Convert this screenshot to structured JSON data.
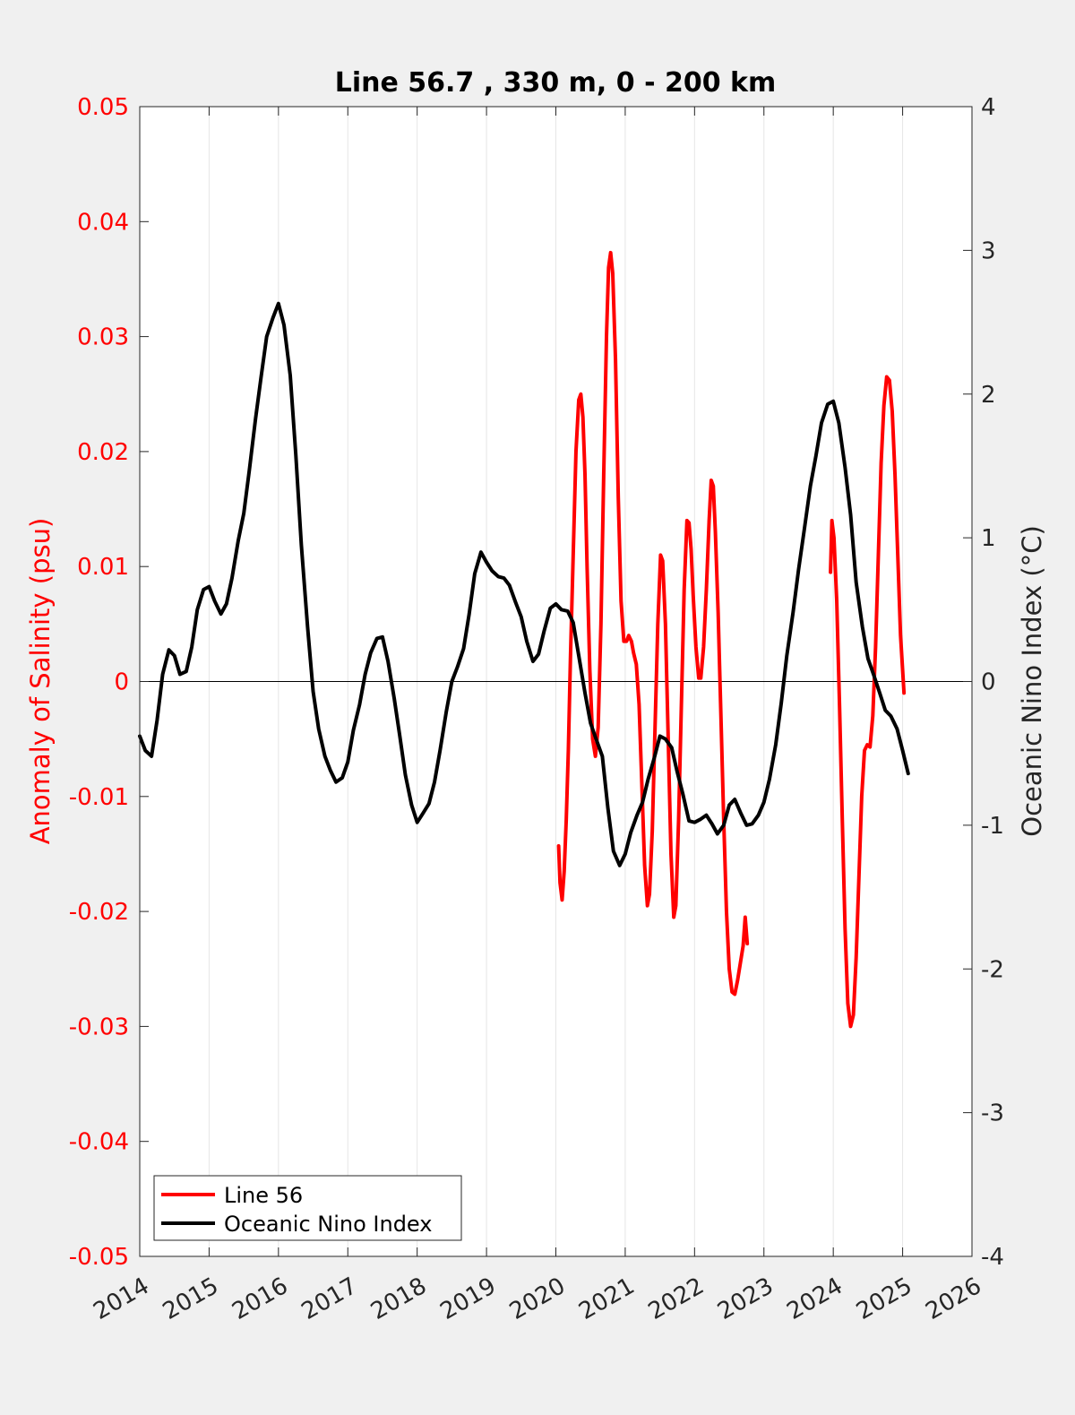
{
  "chart_data": {
    "type": "line",
    "title": "Line 56.7 , 330 m, 0 - 200 km",
    "xlabel": "",
    "ylabel_left": "Anomaly of Salinity (psu)",
    "ylabel_right": "Oceanic Nino Index (°C)",
    "xlim": [
      2014,
      2026
    ],
    "ylim_left": [
      -0.05,
      0.05
    ],
    "ylim_right": [
      -4,
      4
    ],
    "x_ticks": [
      "2014",
      "2015",
      "2016",
      "2017",
      "2018",
      "2019",
      "2020",
      "2021",
      "2022",
      "2023",
      "2024",
      "2025",
      "2026"
    ],
    "y_left_ticks": [
      "-0.05",
      "-0.04",
      "-0.03",
      "-0.02",
      "-0.01",
      "0",
      "0.01",
      "0.02",
      "0.03",
      "0.04",
      "0.05"
    ],
    "y_right_ticks": [
      "-4",
      "-3",
      "-2",
      "-1",
      "0",
      "1",
      "2",
      "3",
      "4"
    ],
    "grid": "vertical",
    "legend_position": "bottom-left",
    "colors": {
      "left_axis": "#ff0000",
      "line56": "#ff0000",
      "oni": "#000000",
      "grid": "#e6e6e6",
      "plot_bg": "#ffffff",
      "figure_bg": "#f0f0f0"
    },
    "legend": [
      {
        "label": "Line 56",
        "color": "#ff0000"
      },
      {
        "label": "Oceanic Nino Index",
        "color": "#000000"
      }
    ],
    "series": [
      {
        "name": "Line 56",
        "axis": "left",
        "color": "#ff0000",
        "segments": [
          [
            [
              2020.04,
              -0.0143
            ],
            [
              2020.06,
              -0.0175
            ],
            [
              2020.09,
              -0.019
            ],
            [
              2020.12,
              -0.0165
            ],
            [
              2020.15,
              -0.012
            ],
            [
              2020.18,
              -0.006
            ],
            [
              2020.21,
              0.002
            ],
            [
              2020.25,
              0.011
            ],
            [
              2020.29,
              0.02
            ],
            [
              2020.33,
              0.0245
            ],
            [
              2020.36,
              0.025
            ],
            [
              2020.39,
              0.023
            ],
            [
              2020.42,
              0.018
            ],
            [
              2020.45,
              0.01
            ],
            [
              2020.49,
              0.001
            ],
            [
              2020.53,
              -0.005
            ],
            [
              2020.57,
              -0.0065
            ],
            [
              2020.61,
              -0.004
            ],
            [
              2020.65,
              0.005
            ],
            [
              2020.69,
              0.018
            ],
            [
              2020.73,
              0.03
            ],
            [
              2020.76,
              0.036
            ],
            [
              2020.79,
              0.0373
            ],
            [
              2020.82,
              0.0355
            ],
            [
              2020.86,
              0.028
            ],
            [
              2020.9,
              0.016
            ],
            [
              2020.94,
              0.007
            ],
            [
              2020.98,
              0.0035
            ],
            [
              2021.02,
              0.0035
            ],
            [
              2021.05,
              0.004
            ],
            [
              2021.09,
              0.0035
            ],
            [
              2021.12,
              0.0025
            ],
            [
              2021.16,
              0.0015
            ],
            [
              2021.2,
              -0.002
            ],
            [
              2021.24,
              -0.009
            ],
            [
              2021.28,
              -0.016
            ],
            [
              2021.32,
              -0.0195
            ],
            [
              2021.35,
              -0.0185
            ],
            [
              2021.39,
              -0.013
            ],
            [
              2021.43,
              -0.004
            ],
            [
              2021.47,
              0.005
            ],
            [
              2021.51,
              0.011
            ],
            [
              2021.54,
              0.0105
            ],
            [
              2021.58,
              0.005
            ],
            [
              2021.62,
              -0.005
            ],
            [
              2021.66,
              -0.015
            ],
            [
              2021.7,
              -0.0205
            ],
            [
              2021.73,
              -0.0195
            ],
            [
              2021.77,
              -0.012
            ],
            [
              2021.81,
              -0.002
            ],
            [
              2021.85,
              0.008
            ],
            [
              2021.89,
              0.014
            ],
            [
              2021.92,
              0.0138
            ],
            [
              2021.95,
              0.0115
            ],
            [
              2021.98,
              0.0075
            ],
            [
              2022.02,
              0.003
            ],
            [
              2022.06,
              0.0003
            ],
            [
              2022.09,
              0.0003
            ],
            [
              2022.13,
              0.003
            ],
            [
              2022.17,
              0.008
            ],
            [
              2022.21,
              0.014
            ],
            [
              2022.24,
              0.0175
            ],
            [
              2022.27,
              0.017
            ],
            [
              2022.3,
              0.013
            ],
            [
              2022.34,
              0.006
            ],
            [
              2022.38,
              -0.003
            ],
            [
              2022.42,
              -0.012
            ],
            [
              2022.46,
              -0.02
            ],
            [
              2022.5,
              -0.025
            ],
            [
              2022.54,
              -0.027
            ],
            [
              2022.58,
              -0.0272
            ],
            [
              2022.62,
              -0.026
            ],
            [
              2022.66,
              -0.0245
            ],
            [
              2022.7,
              -0.023
            ],
            [
              2022.73,
              -0.0205
            ],
            [
              2022.76,
              -0.0228
            ]
          ],
          [
            [
              2023.96,
              0.0095
            ],
            [
              2023.98,
              0.014
            ],
            [
              2024.01,
              0.0125
            ],
            [
              2024.05,
              0.007
            ],
            [
              2024.09,
              -0.002
            ],
            [
              2024.13,
              -0.012
            ],
            [
              2024.17,
              -0.0215
            ],
            [
              2024.21,
              -0.028
            ],
            [
              2024.25,
              -0.03
            ],
            [
              2024.29,
              -0.029
            ],
            [
              2024.33,
              -0.024
            ],
            [
              2024.37,
              -0.017
            ],
            [
              2024.41,
              -0.01
            ],
            [
              2024.45,
              -0.006
            ],
            [
              2024.49,
              -0.0055
            ],
            [
              2024.53,
              -0.0057
            ],
            [
              2024.57,
              -0.003
            ],
            [
              2024.61,
              0.003
            ],
            [
              2024.65,
              0.011
            ],
            [
              2024.69,
              0.019
            ],
            [
              2024.73,
              0.024
            ],
            [
              2024.77,
              0.0265
            ],
            [
              2024.81,
              0.0262
            ],
            [
              2024.85,
              0.0235
            ],
            [
              2024.89,
              0.018
            ],
            [
              2024.93,
              0.011
            ],
            [
              2024.97,
              0.004
            ],
            [
              2025.02,
              -0.001
            ]
          ]
        ]
      },
      {
        "name": "Oceanic Nino Index",
        "axis": "right",
        "color": "#000000",
        "points": [
          [
            2014.0,
            -0.38
          ],
          [
            2014.08,
            -0.48
          ],
          [
            2014.17,
            -0.52
          ],
          [
            2014.25,
            -0.27
          ],
          [
            2014.33,
            0.05
          ],
          [
            2014.42,
            0.22
          ],
          [
            2014.5,
            0.18
          ],
          [
            2014.58,
            0.05
          ],
          [
            2014.67,
            0.07
          ],
          [
            2014.75,
            0.24
          ],
          [
            2014.83,
            0.5
          ],
          [
            2014.92,
            0.64
          ],
          [
            2015.0,
            0.66
          ],
          [
            2015.08,
            0.56
          ],
          [
            2015.17,
            0.47
          ],
          [
            2015.25,
            0.54
          ],
          [
            2015.33,
            0.72
          ],
          [
            2015.42,
            0.98
          ],
          [
            2015.5,
            1.17
          ],
          [
            2015.58,
            1.47
          ],
          [
            2015.67,
            1.83
          ],
          [
            2015.75,
            2.12
          ],
          [
            2015.83,
            2.4
          ],
          [
            2015.92,
            2.53
          ],
          [
            2016.0,
            2.63
          ],
          [
            2016.08,
            2.48
          ],
          [
            2016.17,
            2.13
          ],
          [
            2016.25,
            1.58
          ],
          [
            2016.33,
            0.95
          ],
          [
            2016.42,
            0.38
          ],
          [
            2016.5,
            -0.07
          ],
          [
            2016.58,
            -0.33
          ],
          [
            2016.67,
            -0.52
          ],
          [
            2016.75,
            -0.62
          ],
          [
            2016.83,
            -0.7
          ],
          [
            2016.92,
            -0.67
          ],
          [
            2017.0,
            -0.56
          ],
          [
            2017.08,
            -0.34
          ],
          [
            2017.17,
            -0.16
          ],
          [
            2017.25,
            0.05
          ],
          [
            2017.33,
            0.2
          ],
          [
            2017.42,
            0.3
          ],
          [
            2017.5,
            0.31
          ],
          [
            2017.58,
            0.14
          ],
          [
            2017.67,
            -0.12
          ],
          [
            2017.75,
            -0.38
          ],
          [
            2017.83,
            -0.65
          ],
          [
            2017.92,
            -0.86
          ],
          [
            2018.0,
            -0.98
          ],
          [
            2018.08,
            -0.92
          ],
          [
            2018.17,
            -0.85
          ],
          [
            2018.25,
            -0.7
          ],
          [
            2018.33,
            -0.48
          ],
          [
            2018.42,
            -0.21
          ],
          [
            2018.5,
            0.0
          ],
          [
            2018.58,
            0.1
          ],
          [
            2018.67,
            0.23
          ],
          [
            2018.75,
            0.47
          ],
          [
            2018.83,
            0.75
          ],
          [
            2018.92,
            0.9
          ],
          [
            2019.0,
            0.83
          ],
          [
            2019.08,
            0.77
          ],
          [
            2019.17,
            0.73
          ],
          [
            2019.25,
            0.72
          ],
          [
            2019.33,
            0.67
          ],
          [
            2019.42,
            0.55
          ],
          [
            2019.5,
            0.45
          ],
          [
            2019.58,
            0.28
          ],
          [
            2019.67,
            0.14
          ],
          [
            2019.75,
            0.19
          ],
          [
            2019.83,
            0.35
          ],
          [
            2019.92,
            0.51
          ],
          [
            2020.0,
            0.54
          ],
          [
            2020.08,
            0.5
          ],
          [
            2020.17,
            0.49
          ],
          [
            2020.25,
            0.41
          ],
          [
            2020.33,
            0.18
          ],
          [
            2020.42,
            -0.08
          ],
          [
            2020.5,
            -0.29
          ],
          [
            2020.58,
            -0.4
          ],
          [
            2020.67,
            -0.52
          ],
          [
            2020.75,
            -0.88
          ],
          [
            2020.83,
            -1.18
          ],
          [
            2020.92,
            -1.28
          ],
          [
            2021.0,
            -1.2
          ],
          [
            2021.08,
            -1.05
          ],
          [
            2021.17,
            -0.93
          ],
          [
            2021.25,
            -0.84
          ],
          [
            2021.33,
            -0.68
          ],
          [
            2021.42,
            -0.53
          ],
          [
            2021.5,
            -0.38
          ],
          [
            2021.58,
            -0.4
          ],
          [
            2021.67,
            -0.46
          ],
          [
            2021.75,
            -0.63
          ],
          [
            2021.83,
            -0.78
          ],
          [
            2021.92,
            -0.97
          ],
          [
            2022.0,
            -0.98
          ],
          [
            2022.08,
            -0.96
          ],
          [
            2022.17,
            -0.93
          ],
          [
            2022.25,
            -0.99
          ],
          [
            2022.33,
            -1.06
          ],
          [
            2022.42,
            -1.0
          ],
          [
            2022.5,
            -0.86
          ],
          [
            2022.58,
            -0.82
          ],
          [
            2022.67,
            -0.92
          ],
          [
            2022.75,
            -1.0
          ],
          [
            2022.83,
            -0.99
          ],
          [
            2022.92,
            -0.93
          ],
          [
            2023.0,
            -0.84
          ],
          [
            2023.08,
            -0.68
          ],
          [
            2023.17,
            -0.44
          ],
          [
            2023.25,
            -0.15
          ],
          [
            2023.33,
            0.18
          ],
          [
            2023.42,
            0.48
          ],
          [
            2023.5,
            0.78
          ],
          [
            2023.58,
            1.05
          ],
          [
            2023.67,
            1.36
          ],
          [
            2023.75,
            1.57
          ],
          [
            2023.83,
            1.8
          ],
          [
            2023.92,
            1.93
          ],
          [
            2024.0,
            1.95
          ],
          [
            2024.08,
            1.8
          ],
          [
            2024.17,
            1.49
          ],
          [
            2024.25,
            1.16
          ],
          [
            2024.33,
            0.69
          ],
          [
            2024.42,
            0.38
          ],
          [
            2024.5,
            0.16
          ],
          [
            2024.58,
            0.05
          ],
          [
            2024.67,
            -0.08
          ],
          [
            2024.75,
            -0.2
          ],
          [
            2024.83,
            -0.24
          ],
          [
            2024.92,
            -0.33
          ],
          [
            2025.0,
            -0.48
          ],
          [
            2025.08,
            -0.64
          ]
        ]
      }
    ]
  }
}
